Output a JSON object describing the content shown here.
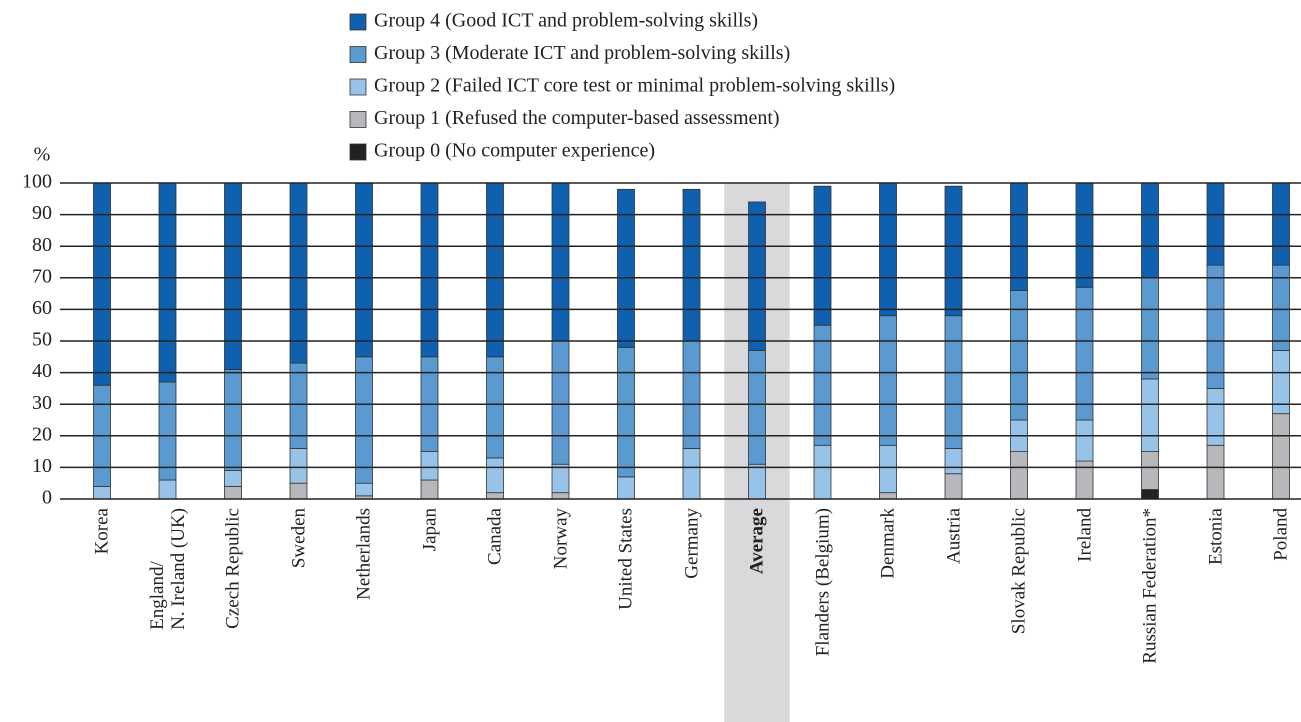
{
  "chart_data": {
    "type": "stacked_bar",
    "y_label": "%",
    "categories": [
      "Korea",
      "England/\nN. Ireland (UK)",
      "Czech Republic",
      "Sweden",
      "Netherlands",
      "Japan",
      "Canada",
      "Norway",
      "United States",
      "Germany",
      "Average",
      "Flanders (Belgium)",
      "Denmark",
      "Austria",
      "Slovak Republic",
      "Ireland",
      "Russian Federation*",
      "Estonia",
      "Poland"
    ],
    "highlight": "Average",
    "series": [
      {
        "name": "Group 0 (No computer experience)",
        "color": "#222222",
        "values": [
          0,
          0,
          0,
          0,
          0,
          0,
          0,
          0,
          0,
          0,
          0,
          0,
          0,
          0,
          0,
          0,
          3,
          0,
          0
        ]
      },
      {
        "name": "Group 1 (Refused the computer-based assessment)",
        "color": "#b8b8bc",
        "values": [
          0,
          0,
          4,
          5,
          1,
          6,
          2,
          2,
          0,
          0,
          0,
          0,
          2,
          8,
          15,
          12,
          12,
          17,
          27
        ]
      },
      {
        "name": "Group 2 (Failed ICT core test or minimal problem-solving skills)",
        "color": "#97c3e8",
        "values": [
          4,
          6,
          5,
          11,
          4,
          9,
          11,
          9,
          7,
          16,
          11,
          17,
          15,
          8,
          10,
          13,
          23,
          18,
          20
        ]
      },
      {
        "name": "Group 3 (Moderate ICT and problem-solving skills)",
        "color": "#5b9ad0",
        "values": [
          32,
          31,
          32,
          27,
          40,
          30,
          32,
          39,
          41,
          34,
          36,
          38,
          41,
          42,
          41,
          42,
          32,
          39,
          27
        ]
      },
      {
        "name": "Group 4 (Good ICT and problem-solving skills)",
        "color": "#1060b0",
        "values": [
          64,
          63,
          59,
          57,
          55,
          55,
          55,
          50,
          50,
          48,
          47,
          44,
          42,
          41,
          34,
          33,
          30,
          26,
          26
        ]
      }
    ],
    "ylim": [
      0,
      100
    ],
    "yticks": [
      0,
      10,
      20,
      30,
      40,
      50,
      60,
      70,
      80,
      90,
      100
    ],
    "grid": true
  }
}
